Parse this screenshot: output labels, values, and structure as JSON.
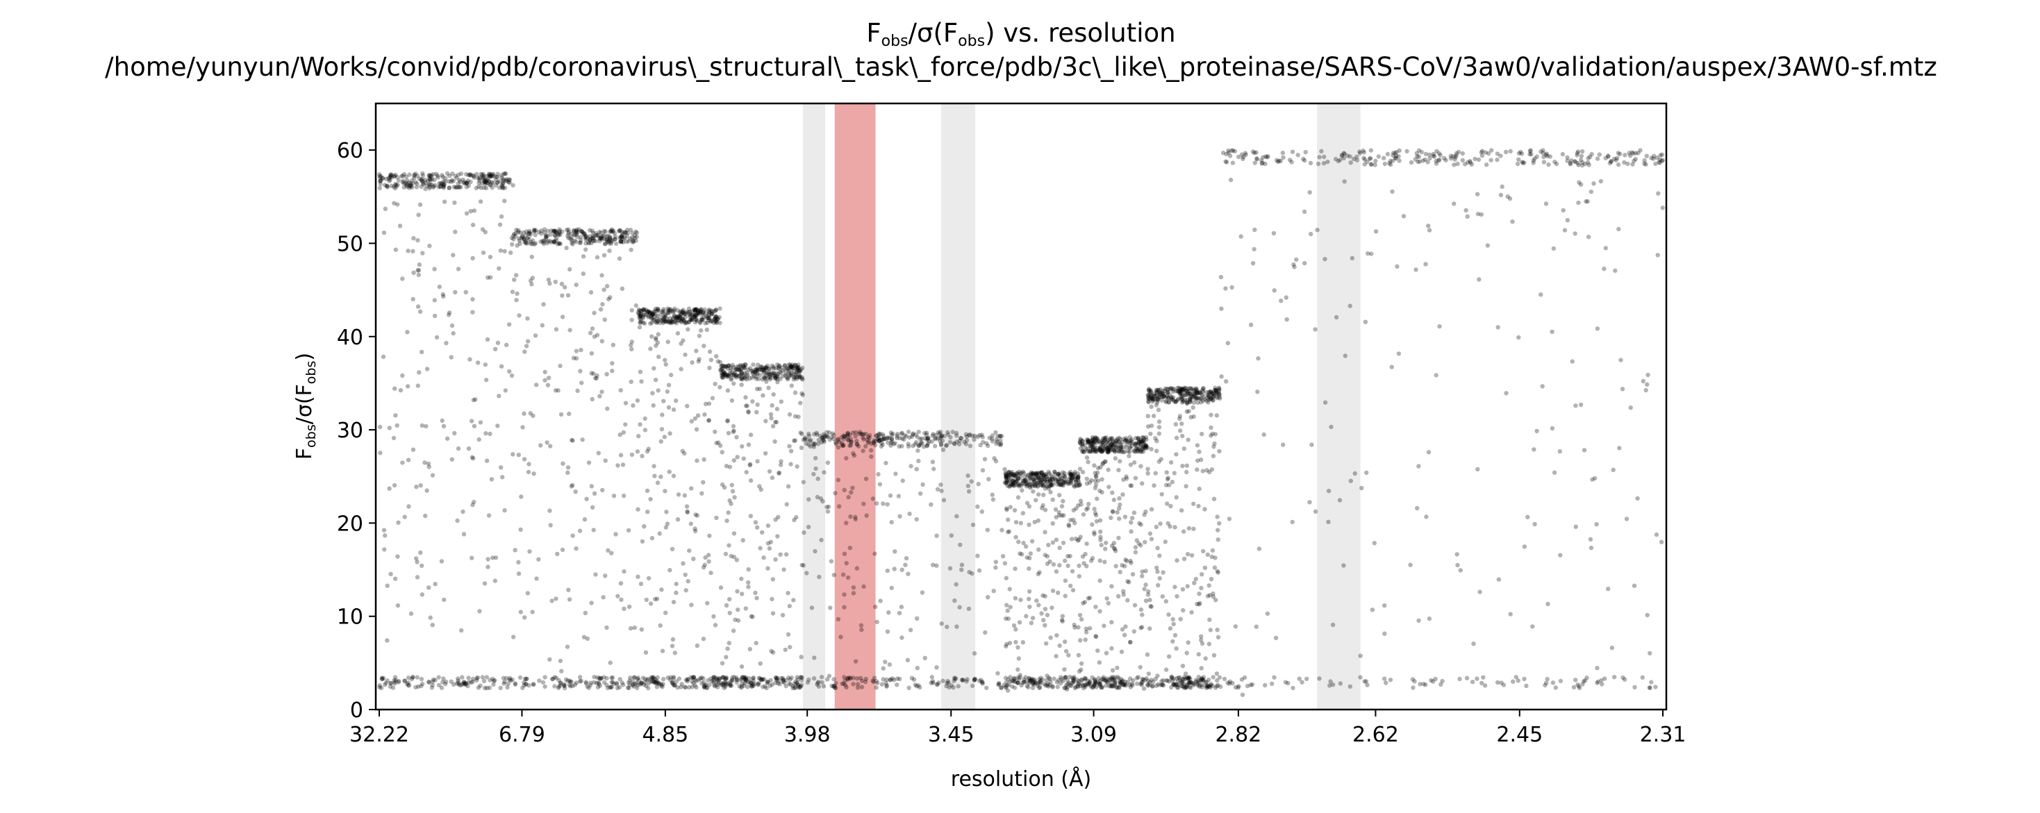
{
  "chart_data": {
    "type": "scatter",
    "title_main": "F",
    "title_sub1": "obs",
    "title_mid": "/σ(F",
    "title_sub2": "obs",
    "title_end": ") vs. resolution",
    "subtitle": "/home/yunyun/Works/convid/pdb/coronavirus\\_structural\\_task\\_force/pdb/3c\\_like\\_proteinase/SARS-CoV/3aw0/validation/auspex/3AW0-sf.mtz",
    "xlabel": "resolution (Å)",
    "ylabel_main": "F",
    "ylabel_sub1": "obs",
    "ylabel_mid": "/σ(F",
    "ylabel_sub2": "obs",
    "ylabel_end": ")",
    "x_axis_quantity": "1/d² (Å⁻²), tick labels show resolution d in Å",
    "xlim_resolution": [
      32.22,
      2.31
    ],
    "ylim": [
      0,
      65
    ],
    "grid": false,
    "legend": "none",
    "x_ticks": [
      "32.22",
      "6.79",
      "4.85",
      "3.98",
      "3.45",
      "3.09",
      "2.82",
      "2.62",
      "2.45",
      "2.31"
    ],
    "y_ticks": [
      0,
      10,
      20,
      30,
      40,
      50,
      60
    ],
    "highlight_bands": [
      {
        "res_high": 4.0,
        "res_low": 3.9,
        "color": "#d3d3d3"
      },
      {
        "res_high": 3.86,
        "res_low": 3.7,
        "color": "#e68a8a"
      },
      {
        "res_high": 3.48,
        "res_low": 3.38,
        "color": "#d3d3d3"
      },
      {
        "res_high": 2.7,
        "res_low": 2.64,
        "color": "#d3d3d3"
      }
    ],
    "series": [
      {
        "point_color": "#000000",
        "point_opacity": 0.3,
        "shells": [
          {
            "res_from": 32.22,
            "res_to": 7.0,
            "ceiling": 57.5,
            "floor": 5
          },
          {
            "res_from": 7.0,
            "res_to": 5.1,
            "ceiling": 51.5,
            "floor": 4
          },
          {
            "res_from": 5.1,
            "res_to": 4.45,
            "ceiling": 43.0,
            "floor": 2
          },
          {
            "res_from": 4.45,
            "res_to": 4.0,
            "ceiling": 37.0,
            "floor": 2
          },
          {
            "res_from": 4.0,
            "res_to": 3.3,
            "ceiling": 29.8,
            "floor": 1.5
          },
          {
            "res_from": 3.3,
            "res_to": 3.12,
            "ceiling": 25.5,
            "floor": 1.5
          },
          {
            "res_from": 3.12,
            "res_to": 2.98,
            "ceiling": 29.2,
            "floor": 1.5
          },
          {
            "res_from": 2.98,
            "res_to": 2.85,
            "ceiling": 34.5,
            "floor": 1.5
          },
          {
            "res_from": 2.85,
            "res_to": 2.31,
            "ceiling": 60.0,
            "floor": 1.5
          }
        ],
        "noise_floor": 2.3
      }
    ]
  }
}
